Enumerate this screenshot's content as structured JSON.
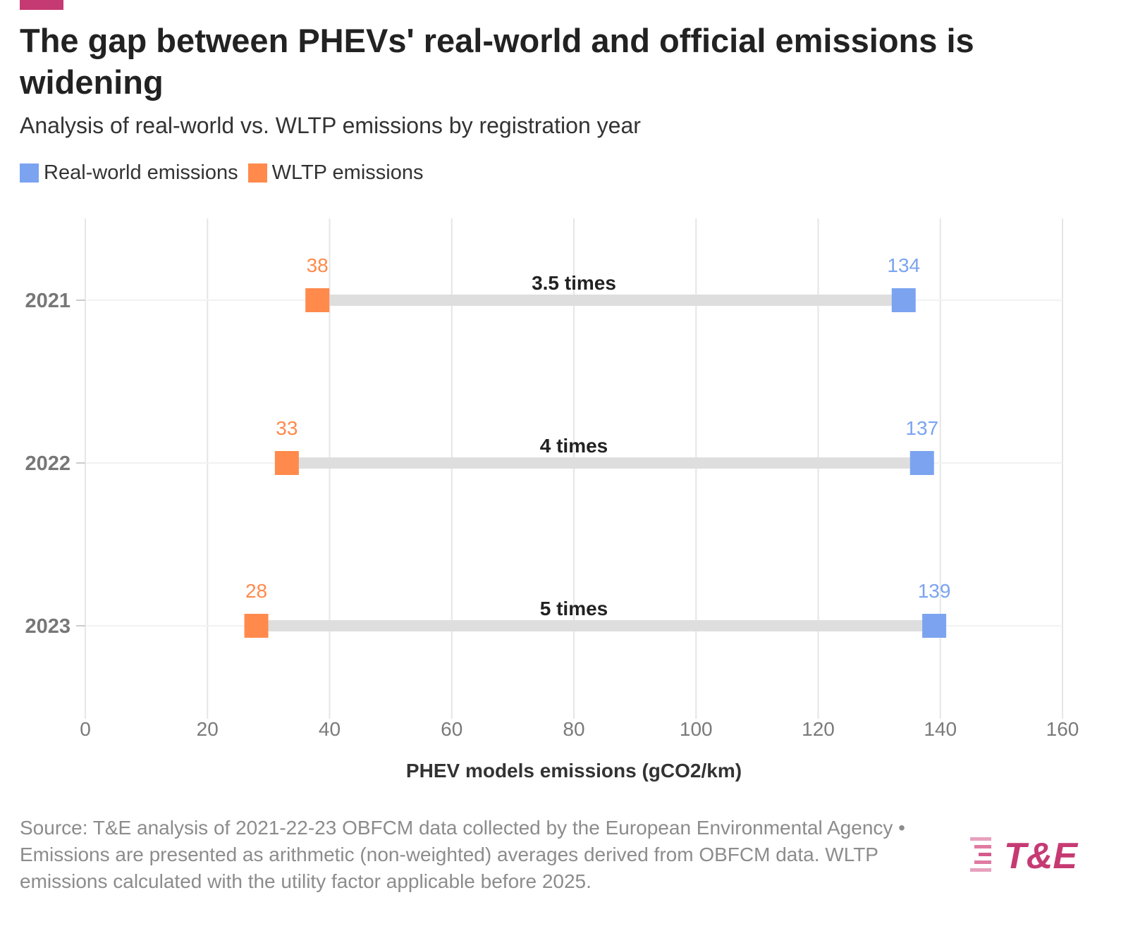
{
  "header": {
    "title": "The gap between PHEVs' real-world and official emissions is widening",
    "subtitle": "Analysis of real-world vs. WLTP emissions by registration year"
  },
  "legend": [
    {
      "label": "Real-world emissions",
      "color": "#7ba3f0"
    },
    {
      "label": "WLTP emissions",
      "color": "#ff8a4c"
    }
  ],
  "chart_data": {
    "type": "dumbbell",
    "categories": [
      "2021",
      "2022",
      "2023"
    ],
    "series": [
      {
        "name": "WLTP emissions",
        "color": "#ff8a4c",
        "values": [
          38,
          33,
          28
        ]
      },
      {
        "name": "Real-world emissions",
        "color": "#7ba3f0",
        "values": [
          134,
          137,
          139
        ]
      }
    ],
    "annotations": [
      "3.5 times",
      "4 times",
      "5 times"
    ],
    "xlabel": "PHEV models emissions (gCO2/km)",
    "xlim": [
      0,
      160
    ],
    "xticks": [
      0,
      20,
      40,
      60,
      80,
      100,
      120,
      140,
      160
    ],
    "grid": true,
    "legend_position": "top-left"
  },
  "footer": {
    "source": "Source: T&E analysis of 2021-22-23 OBFCM data collected by the European Environmental Agency • Emissions are presented as arithmetic (non-weighted) averages derived from OBFCM data. WLTP emissions calculated with the utility factor applicable before 2025.",
    "logo_text": "T&E",
    "logo_color": "#c63a73"
  }
}
